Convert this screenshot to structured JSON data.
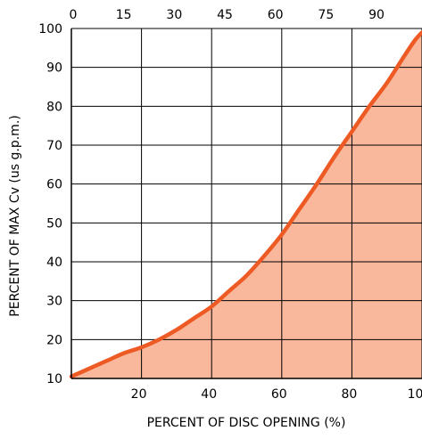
{
  "chart_data": {
    "type": "area",
    "xlabel": "PERCENT OF DISC OPENING (%)",
    "ylabel": "PERCENT OF MAX Cv (us g.p.m.)",
    "xlim": [
      0,
      100
    ],
    "ylim": [
      10,
      100
    ],
    "grid": true,
    "x_ticks": [
      "20",
      "40",
      "60",
      "80",
      "100"
    ],
    "y_ticks": [
      "10",
      "20",
      "30",
      "40",
      "50",
      "60",
      "70",
      "80",
      "90",
      "100"
    ],
    "top_ticks": [
      "0",
      "15",
      "30",
      "45",
      "60",
      "75",
      "90"
    ],
    "series": [
      {
        "x": [
          0,
          5,
          10,
          15,
          20,
          25,
          30,
          35,
          40,
          45,
          50,
          55,
          60,
          65,
          70,
          75,
          80,
          85,
          90,
          95,
          98,
          100
        ],
        "y": [
          10.5,
          12.5,
          14.5,
          16.5,
          18.0,
          20.0,
          22.5,
          25.5,
          28.5,
          32.5,
          36.5,
          41.5,
          47.0,
          53.5,
          60.0,
          67.0,
          73.5,
          80.0,
          86.0,
          93.0,
          97.0,
          99.0
        ]
      }
    ],
    "colors": {
      "line": "#ee5a24",
      "fill": "#f9b89c",
      "grid": "#000000"
    }
  }
}
